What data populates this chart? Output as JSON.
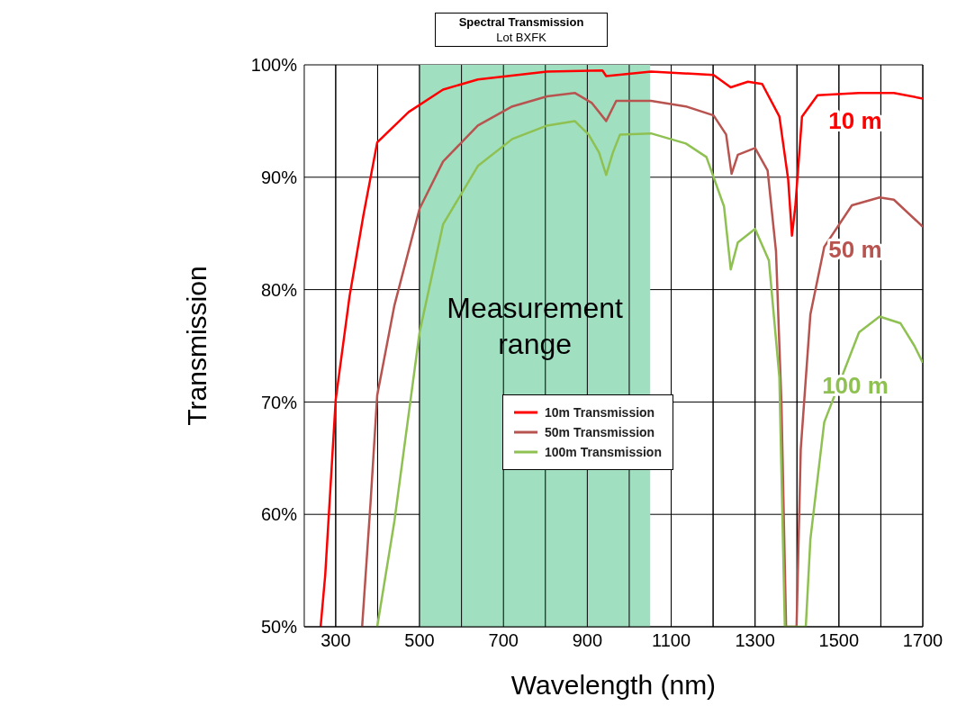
{
  "chart_data": {
    "type": "line",
    "title": "Spectral Transmission",
    "subtitle": "Lot BXFK",
    "xlabel": "Wavelength (nm)",
    "ylabel": "Transmission",
    "xlim": [
      225,
      1700
    ],
    "xticks": [
      {
        "value": 300,
        "label": "300"
      },
      {
        "value": 400,
        "label": null
      },
      {
        "value": 500,
        "label": "500"
      },
      {
        "value": 600,
        "label": null
      },
      {
        "value": 700,
        "label": "700"
      },
      {
        "value": 800,
        "label": null
      },
      {
        "value": 900,
        "label": "900"
      },
      {
        "value": 1000,
        "label": null
      },
      {
        "value": 1100,
        "label": "1100"
      },
      {
        "value": 1200,
        "label": null
      },
      {
        "value": 1300,
        "label": "1300"
      },
      {
        "value": 1400,
        "label": null
      },
      {
        "value": 1500,
        "label": "1500"
      },
      {
        "value": 1600,
        "label": null
      },
      {
        "value": 1700,
        "label": "1700"
      }
    ],
    "ylim": [
      50,
      100
    ],
    "yticks": [
      {
        "value": 50,
        "label": "50%"
      },
      {
        "value": 60,
        "label": "60%"
      },
      {
        "value": 70,
        "label": "70%"
      },
      {
        "value": 80,
        "label": "80%"
      },
      {
        "value": 90,
        "label": "90%"
      },
      {
        "value": 100,
        "label": "100%"
      }
    ],
    "grid": true,
    "legend": "center",
    "marker": "none",
    "line_style": "solid",
    "bands": [
      {
        "axis": "x",
        "from": 500,
        "to": 1050,
        "label": "Measurement range",
        "color": "#a0e0c0"
      }
    ],
    "annotations": [
      "10 m",
      "50 m",
      "100 m"
    ],
    "series": [
      {
        "name": "10m Transmission",
        "color": "#ff0000",
        "x": [
          264,
          275,
          300,
          333,
          366,
          399,
          474,
          556,
          639,
          804,
          936,
          945,
          1052,
          1201,
          1242,
          1283,
          1317,
          1358,
          1379,
          1388,
          1396,
          1412,
          1449,
          1548,
          1631,
          1700
        ],
        "values": [
          50,
          54.6,
          70.2,
          79.4,
          86.6,
          93.1,
          95.8,
          97.8,
          98.7,
          99.4,
          99.5,
          99.0,
          99.4,
          99.1,
          98,
          98.5,
          98.3,
          95.4,
          89.8,
          84.8,
          87.4,
          95.4,
          97.3,
          97.5,
          97.5,
          97
        ]
      },
      {
        "name": "50m Transmission",
        "color": "#b85450",
        "x": [
          363,
          383,
          399,
          440,
          500,
          556,
          639,
          721,
          804,
          870,
          911,
          945,
          969,
          1052,
          1135,
          1201,
          1231,
          1244,
          1259,
          1300,
          1330,
          1350,
          1363,
          1374,
          1399,
          1409,
          1432,
          1465,
          1531,
          1597,
          1631,
          1700
        ],
        "values": [
          50,
          61,
          70.6,
          78.6,
          87.2,
          91.4,
          94.6,
          96.3,
          97.2,
          97.5,
          96.6,
          95,
          96.8,
          96.8,
          96.3,
          95.5,
          93.8,
          90.3,
          92,
          92.6,
          90.6,
          83.4,
          69.8,
          50,
          50,
          65.8,
          77.8,
          83.8,
          87.5,
          88.2,
          88,
          85.6
        ]
      },
      {
        "name": "100m Transmission",
        "color": "#8fc152",
        "x": [
          399,
          440,
          500,
          556,
          639,
          721,
          804,
          870,
          903,
          928,
          945,
          961,
          978,
          1052,
          1135,
          1184,
          1226,
          1242,
          1259,
          1300,
          1333,
          1358,
          1371,
          1421,
          1432,
          1465,
          1548,
          1597,
          1647,
          1680,
          1700
        ],
        "values": [
          50,
          59.4,
          76.2,
          85.8,
          91,
          93.4,
          94.6,
          95,
          93.8,
          92.2,
          90.2,
          92.2,
          93.8,
          93.9,
          93,
          91.8,
          87.4,
          81.8,
          84.2,
          85.4,
          82.6,
          72.2,
          50,
          50,
          57.8,
          68.2,
          76.2,
          77.6,
          77,
          75,
          73.5
        ]
      }
    ]
  }
}
